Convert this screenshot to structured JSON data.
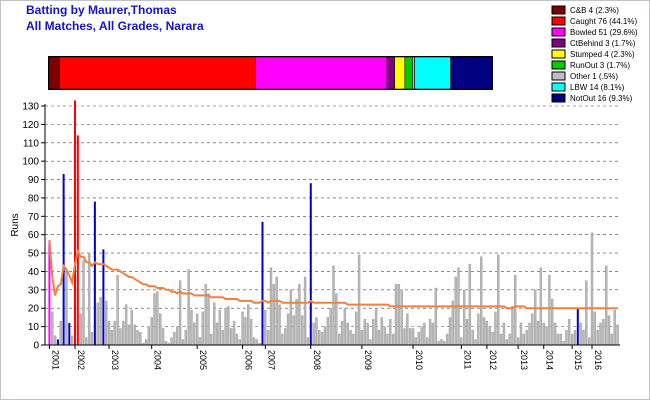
{
  "chart_data": {
    "type": "bar",
    "title": "Batting by Maurer,Thomas",
    "subtitle": "All Matches, All Grades, Narara",
    "ylabel": "Runs",
    "xlabel": "",
    "ylim": [
      0,
      130
    ],
    "yticks": [
      0,
      10,
      20,
      30,
      40,
      50,
      60,
      70,
      80,
      90,
      100,
      110,
      120,
      130
    ],
    "grid": true,
    "legend_position": "top-right",
    "x_ticks": [
      {
        "label": "2001",
        "index": 0
      },
      {
        "label": "2002",
        "index": 9
      },
      {
        "label": "2003",
        "index": 21
      },
      {
        "label": "2004",
        "index": 36
      },
      {
        "label": "2005",
        "index": 52
      },
      {
        "label": "2006",
        "index": 68
      },
      {
        "label": "2007",
        "index": 76
      },
      {
        "label": "2008",
        "index": 92
      },
      {
        "label": "2009",
        "index": 110
      },
      {
        "label": "2010",
        "index": 128
      },
      {
        "label": "2011",
        "index": 145
      },
      {
        "label": "2012",
        "index": 154
      },
      {
        "label": "2013",
        "index": 165
      },
      {
        "label": "2014",
        "index": 174
      },
      {
        "label": "2015",
        "index": 184
      },
      {
        "label": "2016",
        "index": 191
      }
    ],
    "dismissal_legend": [
      {
        "label": "C&B 4 (2.3%)",
        "color": "#800000",
        "fraction": 0.023
      },
      {
        "label": "Caught 76 (44.1%)",
        "color": "#ff0000",
        "fraction": 0.441
      },
      {
        "label": "Bowled 51 (29.6%)",
        "color": "#ff00ff",
        "fraction": 0.296
      },
      {
        "label": "CtBehind 3 (1.7%)",
        "color": "#800080",
        "fraction": 0.017
      },
      {
        "label": "Stumped 4 (2.3%)",
        "color": "#ffff00",
        "fraction": 0.023
      },
      {
        "label": "RunOut 3 (1.7%)",
        "color": "#00cc00",
        "fraction": 0.017
      },
      {
        "label": "Other 1 (.5%)",
        "color": "#c0c0c0",
        "fraction": 0.005
      },
      {
        "label": "LBW 14 (8.1%)",
        "color": "#00ffff",
        "fraction": 0.081
      },
      {
        "label": "NotOut 16 (9.3%)",
        "color": "#000080",
        "fraction": 0.093
      }
    ],
    "series": [
      {
        "values": [
          57,
          18,
          5,
          3,
          13,
          93,
          40,
          12,
          5,
          133,
          114,
          17,
          46,
          4,
          50,
          7,
          78,
          23,
          26,
          52,
          24,
          13,
          8,
          13,
          38,
          9,
          13,
          22,
          11,
          19,
          11,
          8,
          7,
          1,
          3,
          10,
          15,
          28,
          29,
          17,
          9,
          2,
          1,
          4,
          7,
          10,
          35,
          3,
          8,
          41,
          19,
          12,
          17,
          4,
          18,
          33,
          28,
          6,
          23,
          12,
          19,
          8,
          20,
          21,
          9,
          13,
          6,
          3,
          18,
          15,
          22,
          14,
          4,
          3,
          1,
          67,
          19,
          8,
          42,
          33,
          37,
          22,
          6,
          9,
          17,
          30,
          16,
          25,
          33,
          16,
          37,
          4,
          88,
          12,
          15,
          8,
          7,
          10,
          15,
          20,
          43,
          28,
          6,
          13,
          20,
          12,
          8,
          6,
          18,
          49,
          8,
          14,
          12,
          3,
          14,
          20,
          8,
          15,
          10,
          6,
          14,
          6,
          33,
          33,
          30,
          9,
          17,
          9,
          9,
          4,
          7,
          10,
          12,
          4,
          14,
          12,
          31,
          2,
          3,
          2,
          6,
          15,
          24,
          37,
          42,
          4,
          30,
          14,
          44,
          8,
          3,
          17,
          48,
          15,
          13,
          10,
          7,
          18,
          49,
          6,
          12,
          3,
          6,
          21,
          38,
          4,
          12,
          6,
          8,
          12,
          17,
          30,
          13,
          42,
          12,
          10,
          38,
          25,
          12,
          6,
          6,
          2,
          8,
          14,
          6,
          8,
          20,
          12,
          8,
          35,
          4,
          61,
          18,
          8,
          12,
          14,
          43,
          16,
          6,
          19,
          11
        ],
        "colors_by_dismissal": "mixed"
      },
      {
        "name": "",
        "type": "line",
        "values": [
          57,
          37,
          27,
          32,
          33,
          43,
          41,
          38,
          34,
          44,
          51,
          48,
          48,
          45,
          45,
          43,
          45,
          44,
          44,
          44,
          43,
          42,
          41,
          41,
          41,
          40,
          39,
          38,
          37,
          37,
          36,
          35,
          34,
          33,
          33,
          32,
          32,
          32,
          31,
          31,
          31,
          30,
          30,
          29,
          29,
          28,
          29,
          28,
          28,
          28,
          28,
          27,
          27,
          27,
          27,
          27,
          27,
          26,
          26,
          26,
          26,
          26,
          25,
          25,
          25,
          25,
          25,
          24,
          24,
          24,
          24,
          24,
          23,
          23,
          23,
          24,
          24,
          23,
          24,
          24,
          24,
          24,
          23,
          23,
          23,
          23,
          23,
          23,
          23,
          23,
          23,
          23,
          24,
          23,
          23,
          23,
          23,
          23,
          23,
          23,
          23,
          23,
          23,
          23,
          23,
          22,
          22,
          22,
          22,
          22,
          22,
          22,
          22,
          22,
          22,
          22,
          22,
          22,
          22,
          22,
          21,
          21,
          21,
          21,
          21,
          21,
          21,
          21,
          21,
          21,
          21,
          21,
          21,
          21,
          21,
          21,
          21,
          21,
          21,
          21,
          21,
          21,
          21,
          21,
          21,
          21,
          21,
          21,
          21,
          21,
          21,
          21,
          21,
          21,
          21,
          21,
          21,
          21,
          21,
          21,
          21,
          20,
          20,
          20,
          21,
          21,
          21,
          21,
          20,
          20,
          20,
          20,
          20,
          20,
          20,
          20,
          20,
          20,
          20,
          20,
          20,
          20,
          20,
          20,
          20,
          20,
          20,
          20,
          20,
          20,
          20,
          20,
          20,
          20,
          20,
          20,
          20,
          20,
          20,
          20,
          20
        ]
      }
    ]
  }
}
